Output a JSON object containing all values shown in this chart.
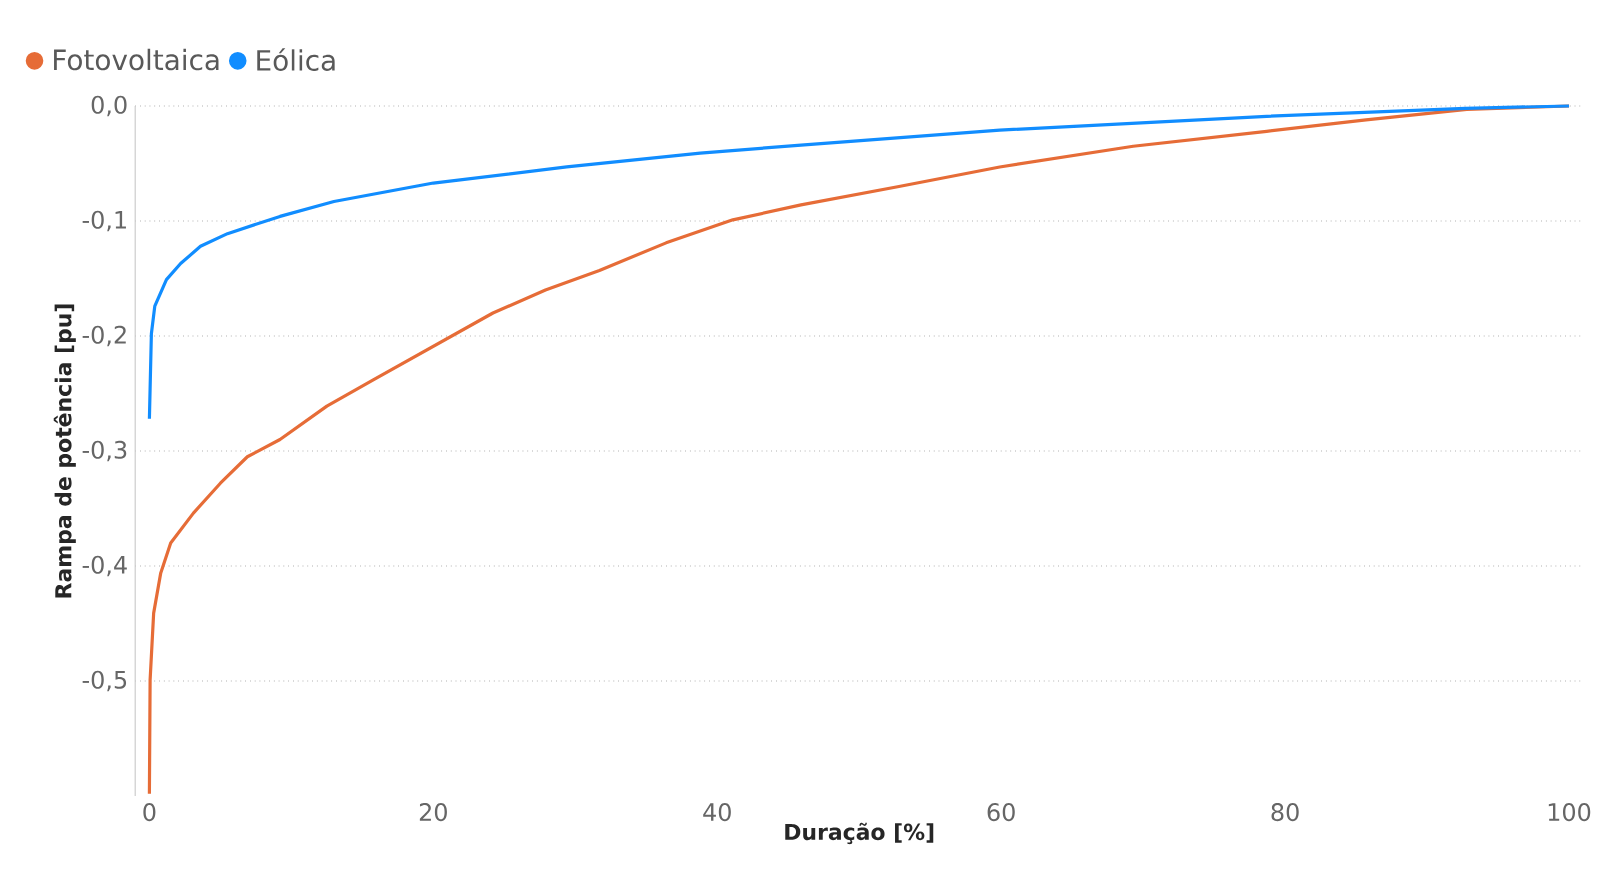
{
  "chart_data": {
    "type": "line",
    "xlabel": "Duração [%]",
    "ylabel": "Rampa de potência [pu]",
    "xlim": [
      -1,
      101
    ],
    "ylim": [
      -0.6,
      0
    ],
    "xticks": [
      0,
      20,
      40,
      60,
      80,
      100
    ],
    "yticks": [
      {
        "value": -0.5,
        "label": "-0,5"
      },
      {
        "value": -0.4,
        "label": "-0,4"
      },
      {
        "value": -0.3,
        "label": "-0,3"
      },
      {
        "value": -0.2,
        "label": "-0,2"
      },
      {
        "value": -0.1,
        "label": "-0,1"
      },
      {
        "value": 0,
        "label": "0,0"
      }
    ],
    "grid": "y",
    "legend": "top left",
    "marker": "none",
    "line_style": "solid",
    "series": [
      {
        "name": "Fotovoltaica",
        "color": "#e66c37",
        "x": [
          0,
          0.05,
          0.3,
          0.8,
          1.5,
          3.1,
          5,
          6.9,
          9.2,
          12.5,
          15.8,
          20,
          24.2,
          27.9,
          31.7,
          36.4,
          41.1,
          45.9,
          52.8,
          59.9,
          69.3,
          78.7,
          85.7,
          92.8,
          100
        ],
        "values": [
          -0.598,
          -0.499,
          -0.441,
          -0.406,
          -0.38,
          -0.354,
          -0.328,
          -0.305,
          -0.29,
          -0.261,
          -0.238,
          -0.209,
          -0.18,
          -0.16,
          -0.143,
          -0.119,
          -0.099,
          -0.086,
          -0.07,
          -0.053,
          -0.035,
          -0.022,
          -0.012,
          -0.003,
          0
        ]
      },
      {
        "name": "Eólica",
        "color": "#118dff",
        "x": [
          0,
          0.14,
          0.38,
          1.2,
          2.2,
          3.6,
          5.5,
          9.2,
          13,
          20,
          29.4,
          38.8,
          45.9,
          59.9,
          78.7,
          92.7,
          100
        ],
        "values": [
          -0.272,
          -0.198,
          -0.174,
          -0.151,
          -0.137,
          -0.122,
          -0.111,
          -0.096,
          -0.083,
          -0.067,
          -0.053,
          -0.041,
          -0.034,
          -0.021,
          -0.009,
          -0.002,
          0
        ]
      }
    ]
  }
}
